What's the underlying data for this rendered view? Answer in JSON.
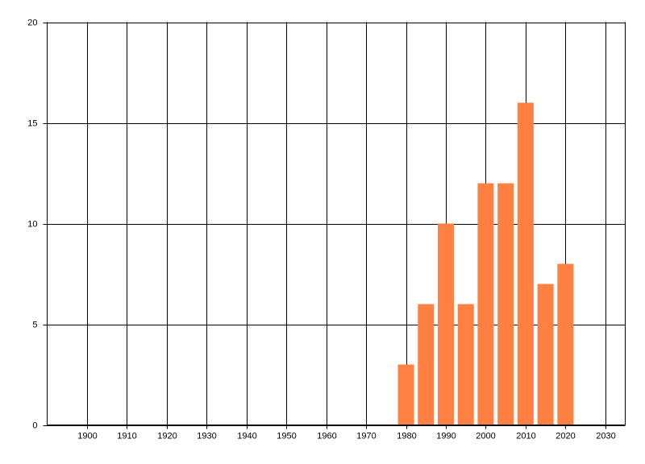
{
  "chart_data": {
    "type": "bar",
    "x": [
      1980,
      1985,
      1990,
      1995,
      2000,
      2005,
      2010,
      2015,
      2020
    ],
    "values": [
      3,
      6,
      10,
      6,
      12,
      12,
      16,
      7,
      8
    ],
    "color": "#ff8040",
    "xlim": [
      1890,
      2035
    ],
    "xticks": [
      1900,
      1910,
      1920,
      1930,
      1940,
      1950,
      1960,
      1970,
      1980,
      1990,
      2000,
      2010,
      2020,
      2030
    ],
    "ylim": [
      0,
      20
    ],
    "yticks": [
      0,
      5,
      10,
      15,
      20
    ],
    "grid": true
  }
}
